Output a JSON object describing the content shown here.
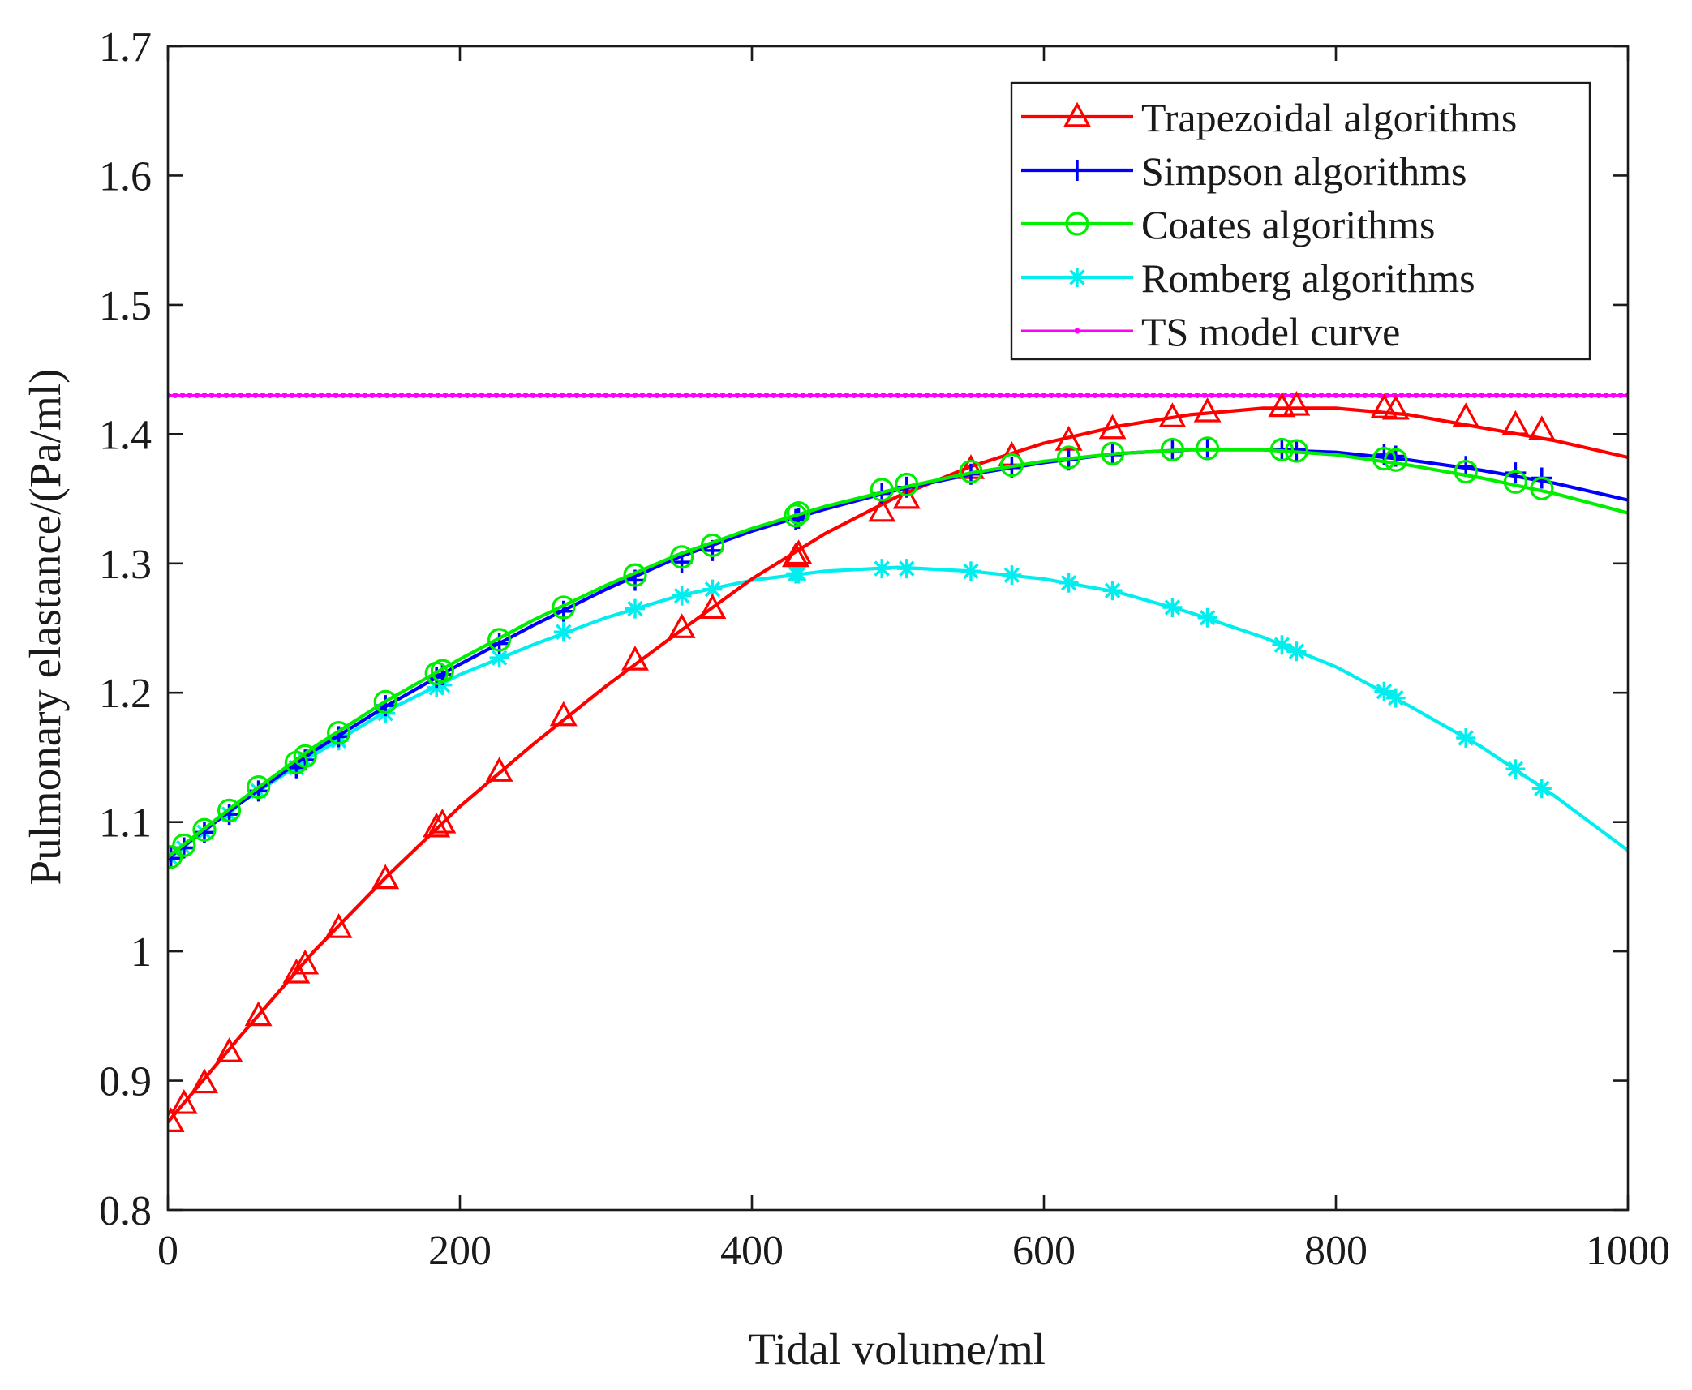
{
  "chart_data": {
    "type": "line",
    "title": "",
    "xlabel": "Tidal volume/ml",
    "ylabel": "Pulmonary elastance/(Pa/ml)",
    "xlim": [
      0,
      1000
    ],
    "ylim": [
      0.8,
      1.7
    ],
    "xticks": [
      0,
      200,
      400,
      600,
      800,
      1000
    ],
    "xtick_labels": [
      "0",
      "200",
      "400",
      "600",
      "800",
      "1000"
    ],
    "yticks": [
      0.8,
      0.9,
      1.0,
      1.1,
      1.2,
      1.3,
      1.4,
      1.5,
      1.6,
      1.7
    ],
    "ytick_labels": [
      "0.8",
      "0.9",
      "1",
      "1.1",
      "1.2",
      "1.3",
      "1.4",
      "1.5",
      "1.6",
      "1.7"
    ],
    "grid": false,
    "legend_position": "top-right",
    "series": [
      {
        "name": "Trapezoidal algorithms",
        "color": "#ff0000",
        "marker": "triangle",
        "line": [
          [
            0,
            0.868
          ],
          [
            50,
            0.935
          ],
          [
            100,
            1.0
          ],
          [
            150,
            1.058
          ],
          [
            200,
            1.112
          ],
          [
            250,
            1.16
          ],
          [
            300,
            1.205
          ],
          [
            350,
            1.247
          ],
          [
            400,
            1.288
          ],
          [
            450,
            1.323
          ],
          [
            500,
            1.352
          ],
          [
            550,
            1.375
          ],
          [
            600,
            1.393
          ],
          [
            650,
            1.406
          ],
          [
            700,
            1.415
          ],
          [
            750,
            1.42
          ],
          [
            800,
            1.42
          ],
          [
            850,
            1.415
          ],
          [
            900,
            1.405
          ],
          [
            950,
            1.395
          ],
          [
            1000,
            1.382
          ]
        ],
        "markers": [
          [
            2,
            0.868
          ],
          [
            11,
            0.882
          ],
          [
            25,
            0.898
          ],
          [
            42,
            0.922
          ],
          [
            62,
            0.95
          ],
          [
            88,
            0.983
          ],
          [
            94,
            0.99
          ],
          [
            117,
            1.018
          ],
          [
            149,
            1.056
          ],
          [
            184,
            1.096
          ],
          [
            188,
            1.099
          ],
          [
            227,
            1.139
          ],
          [
            271,
            1.182
          ],
          [
            320,
            1.225
          ],
          [
            352,
            1.25
          ],
          [
            373,
            1.265
          ],
          [
            430,
            1.305
          ],
          [
            432,
            1.307
          ],
          [
            489,
            1.34
          ],
          [
            506,
            1.35
          ],
          [
            550,
            1.373
          ],
          [
            578,
            1.383
          ],
          [
            617,
            1.395
          ],
          [
            647,
            1.404
          ],
          [
            688,
            1.413
          ],
          [
            712,
            1.417
          ],
          [
            763,
            1.421
          ],
          [
            773,
            1.422
          ],
          [
            833,
            1.42
          ],
          [
            841,
            1.419
          ],
          [
            889,
            1.413
          ],
          [
            923,
            1.407
          ],
          [
            941,
            1.403
          ]
        ]
      },
      {
        "name": "Simpson algorithms",
        "color": "#0000ff",
        "marker": "plus",
        "line": [
          [
            0,
            1.072
          ],
          [
            50,
            1.115
          ],
          [
            100,
            1.155
          ],
          [
            150,
            1.19
          ],
          [
            200,
            1.222
          ],
          [
            250,
            1.252
          ],
          [
            300,
            1.28
          ],
          [
            350,
            1.305
          ],
          [
            400,
            1.325
          ],
          [
            450,
            1.342
          ],
          [
            500,
            1.357
          ],
          [
            550,
            1.369
          ],
          [
            600,
            1.378
          ],
          [
            650,
            1.385
          ],
          [
            700,
            1.388
          ],
          [
            750,
            1.388
          ],
          [
            800,
            1.386
          ],
          [
            850,
            1.38
          ],
          [
            900,
            1.372
          ],
          [
            950,
            1.362
          ],
          [
            1000,
            1.349
          ]
        ],
        "markers": [
          [
            2,
            1.072
          ],
          [
            11,
            1.08
          ],
          [
            25,
            1.092
          ],
          [
            42,
            1.106
          ],
          [
            62,
            1.124
          ],
          [
            88,
            1.142
          ],
          [
            94,
            1.148
          ],
          [
            117,
            1.166
          ],
          [
            149,
            1.19
          ],
          [
            184,
            1.212
          ],
          [
            188,
            1.214
          ],
          [
            227,
            1.238
          ],
          [
            271,
            1.263
          ],
          [
            320,
            1.287
          ],
          [
            352,
            1.301
          ],
          [
            373,
            1.31
          ],
          [
            430,
            1.334
          ],
          [
            432,
            1.335
          ],
          [
            489,
            1.354
          ],
          [
            506,
            1.359
          ],
          [
            550,
            1.369
          ],
          [
            578,
            1.374
          ],
          [
            617,
            1.38
          ],
          [
            647,
            1.384
          ],
          [
            688,
            1.387
          ],
          [
            712,
            1.388
          ],
          [
            763,
            1.388
          ],
          [
            773,
            1.388
          ],
          [
            833,
            1.384
          ],
          [
            841,
            1.383
          ],
          [
            889,
            1.375
          ],
          [
            923,
            1.37
          ],
          [
            941,
            1.366
          ]
        ]
      },
      {
        "name": "Coates algorithms",
        "color": "#00ee00",
        "marker": "circle",
        "line": [
          [
            0,
            1.073
          ],
          [
            50,
            1.117
          ],
          [
            100,
            1.158
          ],
          [
            150,
            1.194
          ],
          [
            200,
            1.226
          ],
          [
            250,
            1.256
          ],
          [
            300,
            1.283
          ],
          [
            350,
            1.307
          ],
          [
            400,
            1.327
          ],
          [
            450,
            1.344
          ],
          [
            500,
            1.358
          ],
          [
            550,
            1.37
          ],
          [
            600,
            1.379
          ],
          [
            650,
            1.385
          ],
          [
            700,
            1.388
          ],
          [
            750,
            1.388
          ],
          [
            800,
            1.384
          ],
          [
            850,
            1.376
          ],
          [
            900,
            1.366
          ],
          [
            950,
            1.354
          ],
          [
            1000,
            1.339
          ]
        ],
        "markers": [
          [
            2,
            1.073
          ],
          [
            11,
            1.082
          ],
          [
            25,
            1.094
          ],
          [
            42,
            1.109
          ],
          [
            62,
            1.127
          ],
          [
            88,
            1.146
          ],
          [
            94,
            1.151
          ],
          [
            117,
            1.169
          ],
          [
            149,
            1.193
          ],
          [
            184,
            1.215
          ],
          [
            188,
            1.217
          ],
          [
            227,
            1.241
          ],
          [
            271,
            1.266
          ],
          [
            320,
            1.291
          ],
          [
            352,
            1.305
          ],
          [
            373,
            1.314
          ],
          [
            430,
            1.337
          ],
          [
            432,
            1.339
          ],
          [
            489,
            1.357
          ],
          [
            506,
            1.361
          ],
          [
            550,
            1.371
          ],
          [
            578,
            1.376
          ],
          [
            617,
            1.382
          ],
          [
            647,
            1.385
          ],
          [
            688,
            1.388
          ],
          [
            712,
            1.389
          ],
          [
            763,
            1.388
          ],
          [
            773,
            1.387
          ],
          [
            833,
            1.381
          ],
          [
            841,
            1.38
          ],
          [
            889,
            1.371
          ],
          [
            923,
            1.363
          ],
          [
            941,
            1.358
          ]
        ]
      },
      {
        "name": "Romberg algorithms",
        "color": "#00eeee",
        "marker": "star",
        "line": [
          [
            0,
            1.072
          ],
          [
            50,
            1.115
          ],
          [
            100,
            1.152
          ],
          [
            150,
            1.186
          ],
          [
            200,
            1.214
          ],
          [
            250,
            1.237
          ],
          [
            300,
            1.258
          ],
          [
            350,
            1.275
          ],
          [
            400,
            1.287
          ],
          [
            450,
            1.294
          ],
          [
            500,
            1.297
          ],
          [
            550,
            1.294
          ],
          [
            600,
            1.288
          ],
          [
            650,
            1.278
          ],
          [
            700,
            1.262
          ],
          [
            750,
            1.243
          ],
          [
            800,
            1.22
          ],
          [
            850,
            1.19
          ],
          [
            900,
            1.158
          ],
          [
            950,
            1.12
          ],
          [
            1000,
            1.078
          ]
        ],
        "markers": [
          [
            2,
            1.072
          ],
          [
            11,
            1.08
          ],
          [
            25,
            1.092
          ],
          [
            42,
            1.106
          ],
          [
            62,
            1.124
          ],
          [
            88,
            1.142
          ],
          [
            94,
            1.148
          ],
          [
            117,
            1.163
          ],
          [
            149,
            1.184
          ],
          [
            184,
            1.204
          ],
          [
            188,
            1.206
          ],
          [
            227,
            1.227
          ],
          [
            271,
            1.247
          ],
          [
            320,
            1.265
          ],
          [
            352,
            1.275
          ],
          [
            373,
            1.28
          ],
          [
            430,
            1.292
          ],
          [
            432,
            1.292
          ],
          [
            489,
            1.296
          ],
          [
            506,
            1.296
          ],
          [
            550,
            1.294
          ],
          [
            578,
            1.291
          ],
          [
            617,
            1.285
          ],
          [
            647,
            1.279
          ],
          [
            688,
            1.266
          ],
          [
            712,
            1.258
          ],
          [
            763,
            1.237
          ],
          [
            773,
            1.232
          ],
          [
            833,
            1.201
          ],
          [
            841,
            1.196
          ],
          [
            889,
            1.165
          ],
          [
            923,
            1.141
          ],
          [
            941,
            1.126
          ]
        ]
      },
      {
        "name": "TS model curve",
        "color": "#ff00ff",
        "marker": "dot",
        "constant": 1.43
      }
    ]
  }
}
